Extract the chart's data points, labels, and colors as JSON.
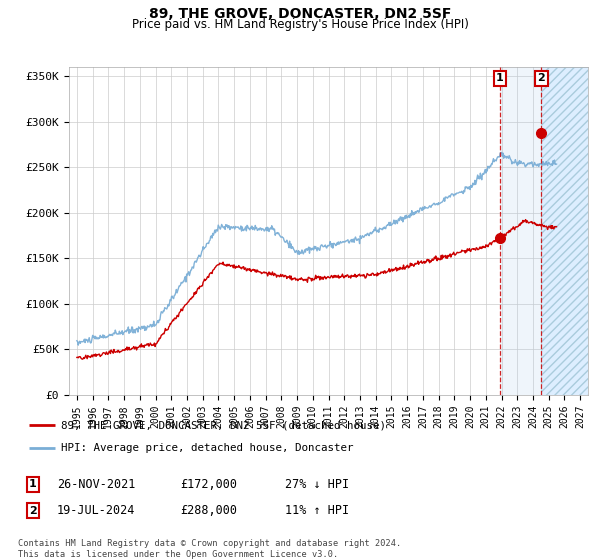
{
  "title": "89, THE GROVE, DONCASTER, DN2 5SF",
  "subtitle": "Price paid vs. HM Land Registry's House Price Index (HPI)",
  "ylabel_ticks": [
    "£0",
    "£50K",
    "£100K",
    "£150K",
    "£200K",
    "£250K",
    "£300K",
    "£350K"
  ],
  "ytick_values": [
    0,
    50000,
    100000,
    150000,
    200000,
    250000,
    300000,
    350000
  ],
  "ylim": [
    0,
    360000
  ],
  "xlim_start": 1994.5,
  "xlim_end": 2027.5,
  "legend_label_red": "89, THE GROVE, DONCASTER, DN2 5SF (detached house)",
  "legend_label_blue": "HPI: Average price, detached house, Doncaster",
  "sale1_date": "26-NOV-2021",
  "sale1_price": "£172,000",
  "sale1_hpi": "27% ↓ HPI",
  "sale1_x": 2021.9,
  "sale1_y": 172000,
  "sale2_date": "19-JUL-2024",
  "sale2_price": "£288,000",
  "sale2_hpi": "11% ↑ HPI",
  "sale2_x": 2024.54,
  "sale2_y": 288000,
  "vline1_x": 2021.9,
  "vline2_x": 2024.54,
  "footer": "Contains HM Land Registry data © Crown copyright and database right 2024.\nThis data is licensed under the Open Government Licence v3.0.",
  "red_color": "#cc0000",
  "blue_color": "#7aaed6",
  "background_color": "#ffffff",
  "grid_color": "#cccccc"
}
